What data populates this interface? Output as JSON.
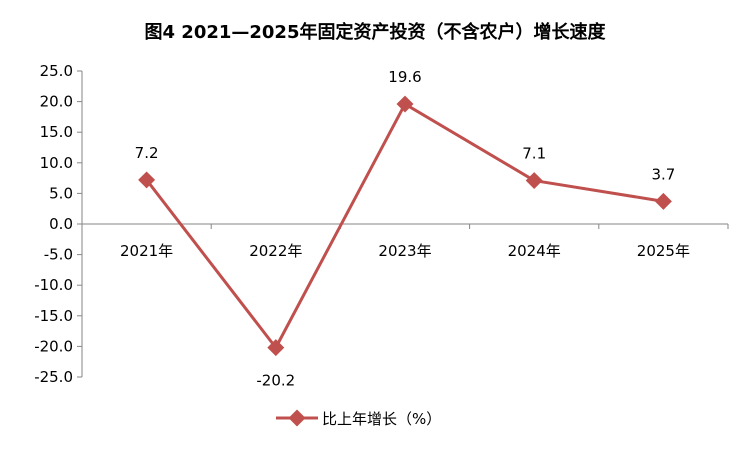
{
  "chart_data": {
    "type": "line",
    "title": "图4    2021—2025年固定资产投资（不含农户）增长速度",
    "categories": [
      "2021年",
      "2022年",
      "2023年",
      "2024年",
      "2025年"
    ],
    "series": [
      {
        "name": "比上年增长（%）",
        "values": [
          7.2,
          -20.2,
          19.6,
          7.1,
          3.7
        ],
        "data_labels": [
          "7.2",
          "-20.2",
          "19.6",
          "7.1",
          "3.7"
        ]
      }
    ],
    "ylim": [
      -25,
      25
    ],
    "yticks": [
      "25.0",
      "20.0",
      "15.0",
      "10.0",
      "5.0",
      "0.0",
      "-5.0",
      "-10.0",
      "-15.0",
      "-20.0",
      "-25.0"
    ],
    "xlabel": "",
    "ylabel": "",
    "grid": false,
    "legend_position": "bottom",
    "color": "#c0504d"
  }
}
